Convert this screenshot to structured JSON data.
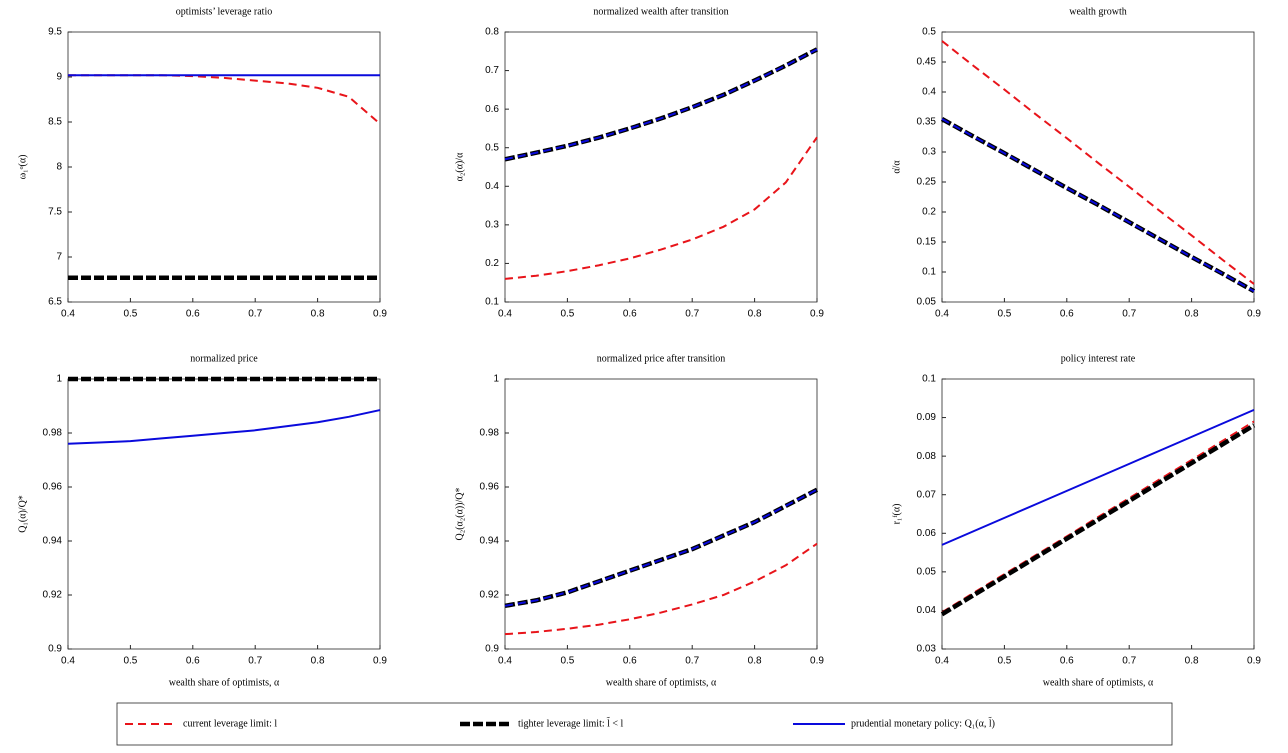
{
  "chart_data": [
    {
      "type": "line",
      "title": "optimists’ leverage ratio",
      "ylabel": "ω₁ᵒ(α)",
      "x": [
        0.4,
        0.45,
        0.5,
        0.55,
        0.6,
        0.65,
        0.7,
        0.75,
        0.8,
        0.85,
        0.9
      ],
      "xlim": [
        0.4,
        0.9
      ],
      "xticks": [
        0.4,
        0.5,
        0.6,
        0.7,
        0.8,
        0.9
      ],
      "ylim": [
        6.5,
        9.5
      ],
      "yticks": [
        6.5,
        7,
        7.5,
        8,
        8.5,
        9,
        9.5
      ],
      "series": [
        {
          "color": "#e8141a",
          "width": 2,
          "dash": "8,5",
          "values": [
            9.02,
            9.02,
            9.02,
            9.02,
            9.01,
            8.99,
            8.96,
            8.93,
            8.88,
            8.78,
            8.48
          ]
        },
        {
          "color": "#000000",
          "width": 4.5,
          "dash": "10,3",
          "values": [
            6.77,
            6.77,
            6.77,
            6.77,
            6.77,
            6.77,
            6.77,
            6.77,
            6.77,
            6.77,
            6.77
          ]
        },
        {
          "color": "#0a0adc",
          "width": 2,
          "dash": "none",
          "values": [
            9.02,
            9.02,
            9.02,
            9.02,
            9.02,
            9.02,
            9.02,
            9.02,
            9.02,
            9.02,
            9.02
          ]
        }
      ]
    },
    {
      "type": "line",
      "title": "normalized wealth after transition",
      "ylabel": "α₂(α)/α",
      "x": [
        0.4,
        0.45,
        0.5,
        0.55,
        0.6,
        0.65,
        0.7,
        0.75,
        0.8,
        0.85,
        0.9
      ],
      "xlim": [
        0.4,
        0.9
      ],
      "xticks": [
        0.4,
        0.5,
        0.6,
        0.7,
        0.8,
        0.9
      ],
      "ylim": [
        0.1,
        0.8
      ],
      "yticks": [
        0.1,
        0.2,
        0.3,
        0.4,
        0.5,
        0.6,
        0.7,
        0.8
      ],
      "series": [
        {
          "color": "#e8141a",
          "width": 2,
          "dash": "8,5",
          "values": [
            0.16,
            0.168,
            0.18,
            0.195,
            0.213,
            0.236,
            0.262,
            0.295,
            0.34,
            0.41,
            0.527
          ]
        },
        {
          "color": "#000000",
          "width": 4.5,
          "dash": "10,3",
          "values": [
            0.47,
            0.487,
            0.505,
            0.526,
            0.55,
            0.576,
            0.605,
            0.637,
            0.674,
            0.713,
            0.755
          ]
        },
        {
          "color": "#0a0adc",
          "width": 2,
          "dash": "8,5",
          "values": [
            0.47,
            0.487,
            0.505,
            0.526,
            0.55,
            0.576,
            0.605,
            0.637,
            0.674,
            0.713,
            0.755
          ]
        }
      ]
    },
    {
      "type": "line",
      "title": "wealth growth",
      "ylabel": "α̇/α",
      "x": [
        0.4,
        0.45,
        0.5,
        0.55,
        0.6,
        0.65,
        0.7,
        0.75,
        0.8,
        0.85,
        0.9
      ],
      "xlim": [
        0.4,
        0.9
      ],
      "xticks": [
        0.4,
        0.5,
        0.6,
        0.7,
        0.8,
        0.9
      ],
      "ylim": [
        0.05,
        0.5
      ],
      "yticks": [
        0.05,
        0.1,
        0.15,
        0.2,
        0.25,
        0.3,
        0.35,
        0.4,
        0.45,
        0.5
      ],
      "series": [
        {
          "color": "#e8141a",
          "width": 2,
          "dash": "8,5",
          "values": [
            0.485,
            0.444,
            0.404,
            0.363,
            0.323,
            0.282,
            0.242,
            0.201,
            0.161,
            0.12,
            0.08
          ]
        },
        {
          "color": "#000000",
          "width": 4.5,
          "dash": "10,3",
          "values": [
            0.355,
            0.326,
            0.298,
            0.269,
            0.24,
            0.212,
            0.183,
            0.154,
            0.125,
            0.097,
            0.068
          ]
        },
        {
          "color": "#0a0adc",
          "width": 2,
          "dash": "8,5",
          "values": [
            0.355,
            0.326,
            0.298,
            0.269,
            0.24,
            0.212,
            0.183,
            0.154,
            0.125,
            0.097,
            0.068
          ]
        }
      ]
    },
    {
      "type": "line",
      "title": "normalized price",
      "ylabel": "Q₁(α)/Q*",
      "xlabel": "wealth share of optimists, α",
      "x": [
        0.4,
        0.45,
        0.5,
        0.55,
        0.6,
        0.65,
        0.7,
        0.75,
        0.8,
        0.85,
        0.9
      ],
      "xlim": [
        0.4,
        0.9
      ],
      "xticks": [
        0.4,
        0.5,
        0.6,
        0.7,
        0.8,
        0.9
      ],
      "ylim": [
        0.9,
        1
      ],
      "yticks": [
        0.9,
        0.92,
        0.94,
        0.96,
        0.98,
        1
      ],
      "series": [
        {
          "color": "#e8141a",
          "width": 2,
          "dash": "8,5",
          "values": [
            1,
            1,
            1,
            1,
            1,
            1,
            1,
            1,
            1,
            1,
            1
          ]
        },
        {
          "color": "#000000",
          "width": 4.5,
          "dash": "10,3",
          "values": [
            1,
            1,
            1,
            1,
            1,
            1,
            1,
            1,
            1,
            1,
            1
          ]
        },
        {
          "color": "#0a0adc",
          "width": 2,
          "dash": "none",
          "values": [
            0.976,
            0.9765,
            0.977,
            0.978,
            0.979,
            0.98,
            0.981,
            0.9825,
            0.984,
            0.986,
            0.9885
          ]
        }
      ]
    },
    {
      "type": "line",
      "title": "normalized price after transition",
      "ylabel": "Q₂(α₂(α))/Q*",
      "xlabel": "wealth share of optimists, α",
      "x": [
        0.4,
        0.45,
        0.5,
        0.55,
        0.6,
        0.65,
        0.7,
        0.75,
        0.8,
        0.85,
        0.9
      ],
      "xlim": [
        0.4,
        0.9
      ],
      "xticks": [
        0.4,
        0.5,
        0.6,
        0.7,
        0.8,
        0.9
      ],
      "ylim": [
        0.9,
        1
      ],
      "yticks": [
        0.9,
        0.92,
        0.94,
        0.96,
        0.98,
        1
      ],
      "series": [
        {
          "color": "#e8141a",
          "width": 2,
          "dash": "8,5",
          "values": [
            0.9055,
            0.9063,
            0.9075,
            0.909,
            0.911,
            0.9135,
            0.9165,
            0.92,
            0.925,
            0.931,
            0.939
          ]
        },
        {
          "color": "#000000",
          "width": 4.5,
          "dash": "10,3",
          "values": [
            0.916,
            0.918,
            0.921,
            0.925,
            0.929,
            0.933,
            0.937,
            0.942,
            0.947,
            0.953,
            0.959
          ]
        },
        {
          "color": "#0a0adc",
          "width": 2,
          "dash": "8,5",
          "values": [
            0.916,
            0.918,
            0.921,
            0.925,
            0.929,
            0.933,
            0.937,
            0.942,
            0.947,
            0.953,
            0.959
          ]
        }
      ]
    },
    {
      "type": "line",
      "title": "policy interest rate",
      "ylabel": "r₁ᶠ(α)",
      "xlabel": "wealth share of optimists, α",
      "x": [
        0.4,
        0.45,
        0.5,
        0.55,
        0.6,
        0.65,
        0.7,
        0.75,
        0.8,
        0.85,
        0.9
      ],
      "xlim": [
        0.4,
        0.9
      ],
      "xticks": [
        0.4,
        0.5,
        0.6,
        0.7,
        0.8,
        0.9
      ],
      "ylim": [
        0.03,
        0.1
      ],
      "yticks": [
        0.03,
        0.04,
        0.05,
        0.06,
        0.07,
        0.08,
        0.09,
        0.1
      ],
      "series": [
        {
          "color": "#e8141a",
          "width": 2,
          "dash": "8,5",
          "values": [
            0.0395,
            0.0445,
            0.0494,
            0.0543,
            0.0592,
            0.0642,
            0.0691,
            0.0741,
            0.079,
            0.084,
            0.089
          ]
        },
        {
          "color": "#000000",
          "width": 4.5,
          "dash": "10,3",
          "values": [
            0.039,
            0.0439,
            0.0488,
            0.0537,
            0.0586,
            0.0635,
            0.0684,
            0.0733,
            0.0782,
            0.0831,
            0.088
          ]
        },
        {
          "color": "#0a0adc",
          "width": 2,
          "dash": "none",
          "values": [
            0.057,
            0.0605,
            0.064,
            0.0675,
            0.071,
            0.0745,
            0.078,
            0.0815,
            0.085,
            0.0885,
            0.092
          ]
        }
      ]
    }
  ],
  "legend": [
    "current leverage limit: l",
    "tighter leverage limit: l̃ < l",
    "prudential monetary policy: Q₁(α, l̃)"
  ]
}
